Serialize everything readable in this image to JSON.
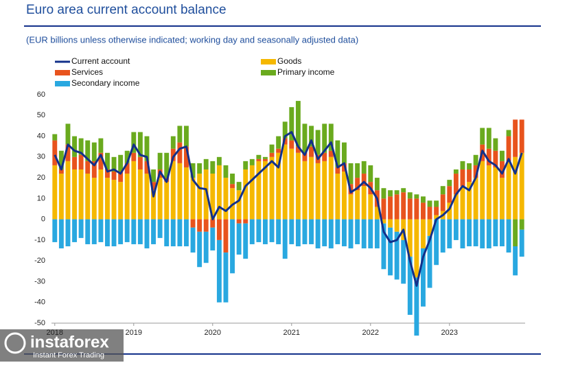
{
  "chart_data": {
    "type": "bar",
    "title": "Euro area current account balance",
    "subtitle": "(EUR billions unless otherwise indicated; working day and seasonally adjusted data)",
    "categories": [
      "2018",
      null,
      null,
      null,
      null,
      null,
      null,
      null,
      null,
      null,
      null,
      null,
      "2019",
      null,
      null,
      null,
      null,
      null,
      null,
      null,
      null,
      null,
      null,
      null,
      "2020",
      null,
      null,
      null,
      null,
      null,
      null,
      null,
      null,
      null,
      null,
      null,
      "2021",
      null,
      null,
      null,
      null,
      null,
      null,
      null,
      null,
      null,
      null,
      null,
      "2022",
      null,
      null,
      null,
      null,
      null,
      null,
      null,
      null,
      null,
      null,
      null,
      "2023",
      null,
      null,
      null,
      null,
      null,
      null,
      null,
      null,
      null,
      null,
      null
    ],
    "ylim": [
      -50,
      60
    ],
    "yticks": [
      -50,
      -40,
      -30,
      -20,
      -10,
      0,
      10,
      20,
      30,
      40,
      50,
      60
    ],
    "grid": false,
    "series": [
      {
        "name": "Current account",
        "type": "line",
        "color": "#12308a",
        "values": [
          31,
          24,
          36,
          33,
          32,
          29,
          26,
          31,
          23,
          24,
          22,
          27,
          36,
          31,
          30,
          11,
          23,
          18,
          30,
          34,
          35,
          19,
          15,
          14.5,
          0,
          6,
          4,
          7,
          9,
          16,
          19,
          22,
          25,
          28,
          25,
          40,
          42,
          35,
          31,
          38,
          29,
          33,
          37,
          25,
          27,
          13,
          15,
          18,
          15,
          10,
          -6,
          -11,
          -10,
          -5,
          -20,
          -32,
          -18,
          -10,
          0,
          2,
          5,
          12,
          16,
          14,
          20,
          33,
          28,
          26,
          22,
          29,
          22,
          32
        ]
      },
      {
        "name": "Goods",
        "color": "#f5b800",
        "values": [
          26,
          22,
          28,
          24,
          24,
          22,
          20,
          24,
          20,
          19,
          18,
          22,
          28,
          24,
          22,
          14,
          20,
          18,
          28,
          27,
          25,
          20,
          22,
          24,
          22,
          26,
          20,
          15,
          14,
          24,
          26,
          28,
          28,
          30,
          32,
          36,
          34,
          32,
          28,
          30,
          27,
          28,
          30,
          22,
          23,
          12,
          14,
          16,
          12,
          6,
          -2,
          -4,
          -6,
          -10,
          -18,
          -28,
          -14,
          -8,
          2,
          4,
          8,
          12,
          16,
          18,
          20,
          28,
          26,
          25,
          20,
          28,
          30,
          32
        ]
      },
      {
        "name": "Services",
        "color": "#e8531d",
        "values": [
          12,
          2,
          8,
          6,
          7,
          6,
          8,
          8,
          4,
          4,
          5,
          5,
          4,
          6,
          6,
          4,
          4,
          2,
          6,
          10,
          10,
          -4,
          -6,
          -6,
          -4,
          -10,
          -16,
          2,
          -2,
          -2,
          0,
          1,
          1,
          2,
          2,
          3,
          4,
          3,
          4,
          5,
          4,
          4,
          3,
          3,
          4,
          5,
          6,
          6,
          6,
          8,
          10,
          11,
          12,
          13,
          10,
          10,
          8,
          6,
          4,
          8,
          8,
          10,
          8,
          6,
          6,
          8,
          8,
          8,
          8,
          12,
          18,
          16
        ]
      },
      {
        "name": "Primary income",
        "color": "#6aaa1e",
        "values": [
          3,
          9,
          10,
          10,
          8,
          10,
          9,
          7,
          8,
          7,
          8,
          6,
          10,
          12,
          12,
          6,
          8,
          12,
          6,
          8,
          10,
          7,
          5,
          5,
          6,
          4,
          6,
          5,
          4,
          4,
          3,
          2,
          1,
          4,
          6,
          8,
          16,
          22,
          14,
          10,
          12,
          14,
          13,
          13,
          10,
          10,
          7,
          6,
          8,
          6,
          5,
          3,
          2,
          2,
          3,
          2,
          3,
          3,
          3,
          4,
          3,
          2,
          4,
          3,
          5,
          8,
          10,
          6,
          5,
          3,
          -13,
          -5
        ]
      },
      {
        "name": "Secondary income",
        "color": "#29a8e0",
        "values": [
          -11,
          -14,
          -13,
          -11,
          -9,
          -12,
          -12,
          -11,
          -13,
          -13,
          -12,
          -11,
          -12,
          -12,
          -14,
          -12,
          -9,
          -13,
          -13,
          -13,
          -13,
          -12,
          -17,
          -15,
          -11,
          -30,
          -24,
          -26,
          -15,
          -17,
          -12,
          -11,
          -12,
          -11,
          -12,
          -19,
          -12,
          -13,
          -12,
          -12,
          -14,
          -13,
          -14,
          -12,
          -13,
          -14,
          -12,
          -14,
          -14,
          -14,
          -22,
          -23,
          -23,
          -21,
          -28,
          -28,
          -28,
          -25,
          -22,
          -16,
          -14,
          -10,
          -14,
          -13,
          -13,
          -14,
          -14,
          -13,
          -13,
          -16,
          -14,
          -13
        ]
      }
    ]
  },
  "watermark": {
    "brand": "instaforex",
    "tagline": "Instant Forex Trading"
  }
}
